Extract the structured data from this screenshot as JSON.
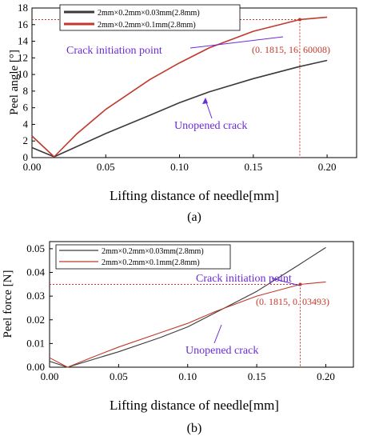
{
  "colors": {
    "series_dark": "#3a3a3a",
    "series_red": "#c0392b",
    "annotation_blue": "#6a2bd9",
    "annotation_red": "#c0392b"
  },
  "chart_data": [
    {
      "type": "line",
      "panel_label": "(a)",
      "xlabel": "Lifting distance of needle[mm]",
      "ylabel": "Peel angle [°]",
      "xlim": [
        0,
        0.22
      ],
      "ylim": [
        0,
        18
      ],
      "x_ticks": [
        "0.00",
        "0.05",
        "0.10",
        "0.15",
        "0.20"
      ],
      "y_ticks": [
        "0",
        "2",
        "4",
        "6",
        "8",
        "10",
        "12",
        "14",
        "16",
        "18"
      ],
      "legend_position": "top-left",
      "series": [
        {
          "name": "2mm×0.2mm×0.03mm(2.8mm)",
          "color_key": "series_dark",
          "x": [
            0,
            0.015,
            0.03,
            0.05,
            0.08,
            0.1,
            0.12,
            0.15,
            0.18,
            0.2
          ],
          "y": [
            1.2,
            0.1,
            1.3,
            2.9,
            5.1,
            6.6,
            7.9,
            9.5,
            10.9,
            11.7
          ]
        },
        {
          "name": "2mm×0.2mm×0.1mm(2.8mm)",
          "color_key": "series_red",
          "x": [
            0,
            0.015,
            0.03,
            0.05,
            0.08,
            0.1,
            0.12,
            0.15,
            0.1815,
            0.2
          ],
          "y": [
            2.6,
            0.1,
            2.8,
            5.8,
            9.4,
            11.4,
            13.2,
            15.2,
            16.6,
            16.9
          ]
        }
      ],
      "annotations": [
        {
          "text": "Crack initiation point",
          "kind": "label"
        },
        {
          "text": "(0. 1815, 16. 60008)",
          "kind": "coordinate",
          "x": 0.1815,
          "y": 16.60008
        },
        {
          "text": "Unopened crack",
          "kind": "label"
        }
      ]
    },
    {
      "type": "line",
      "panel_label": "(b)",
      "xlabel": "Lifting distance of needle[mm]",
      "ylabel": "Peel force [N]",
      "xlim": [
        0,
        0.22
      ],
      "ylim": [
        0,
        0.053
      ],
      "x_ticks": [
        "0.00",
        "0.05",
        "0.10",
        "0.15",
        "0.20"
      ],
      "y_ticks": [
        "0.00",
        "0.01",
        "0.02",
        "0.03",
        "0.04",
        "0.05"
      ],
      "legend_position": "top-left",
      "series": [
        {
          "name": "2mm×0.2mm×0.03mm(2.8mm)",
          "color_key": "series_dark",
          "x": [
            0,
            0.013,
            0.03,
            0.05,
            0.08,
            0.1,
            0.12,
            0.15,
            0.18,
            0.2
          ],
          "y": [
            0.0025,
            0.0,
            0.003,
            0.0065,
            0.0125,
            0.017,
            0.023,
            0.032,
            0.043,
            0.0505
          ]
        },
        {
          "name": "2mm×0.2mm×0.1mm(2.8mm)",
          "color_key": "series_red",
          "x": [
            0,
            0.013,
            0.03,
            0.05,
            0.08,
            0.1,
            0.12,
            0.15,
            0.1815,
            0.2
          ],
          "y": [
            0.004,
            0.0,
            0.004,
            0.0085,
            0.0145,
            0.0185,
            0.0235,
            0.03,
            0.03493,
            0.036
          ]
        }
      ],
      "annotations": [
        {
          "text": "Crack initiation point",
          "kind": "label"
        },
        {
          "text": "(0. 1815, 0. 03493)",
          "kind": "coordinate",
          "x": 0.1815,
          "y": 0.03493
        },
        {
          "text": "Unopened crack",
          "kind": "label"
        }
      ]
    }
  ]
}
